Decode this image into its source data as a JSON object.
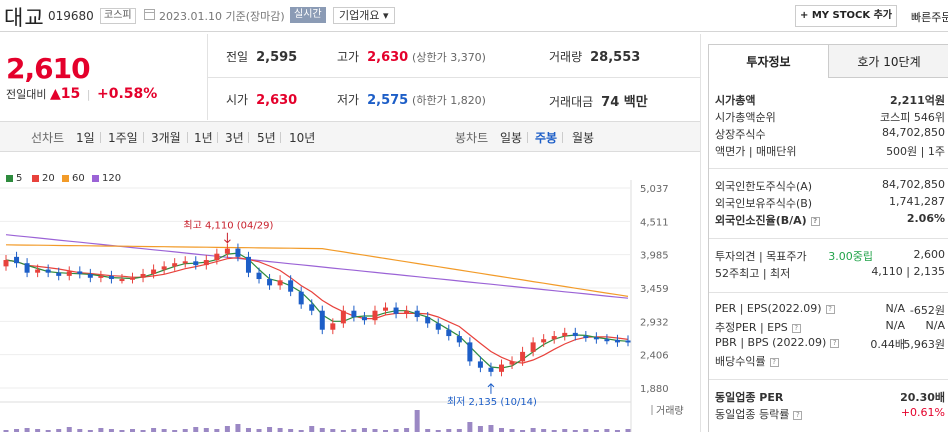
{
  "header": {
    "name": "대교",
    "code": "019680",
    "market": "코스피",
    "date": "2023.01.10 기준(장마감)",
    "realtime_label": "실시간",
    "overview_label": "기업개요 ▾",
    "mystock_label": "+ MY STOCK 추가",
    "quick_label": "빠른주문"
  },
  "quote": {
    "price": "2,610",
    "change_label": "전일대비",
    "change_arrow": "▲",
    "change_value": "15",
    "change_rate": "+0.58%",
    "prev_close_label": "전일",
    "prev_close": "2,595",
    "high_label": "고가",
    "high": "2,630",
    "upper_limit": "(상한가 3,370)",
    "volume_label": "거래량",
    "volume": "28,553",
    "open_label": "시가",
    "open": "2,630",
    "low_label": "저가",
    "low": "2,575",
    "lower_limit": "(하한가 1,820)",
    "amount_label": "거래대금",
    "amount": "74 백만"
  },
  "period_bar": {
    "line_label": "선차트",
    "line_periods": [
      "1일",
      "1주일",
      "3개월",
      "1년",
      "3년",
      "5년",
      "10년"
    ],
    "candle_label": "봉차트",
    "candle_periods": [
      "일봉",
      "주봉",
      "월봉"
    ],
    "candle_selected": "주봉"
  },
  "legend": [
    {
      "label": "5",
      "color": "#2e8b3e"
    },
    {
      "label": "20",
      "color": "#e8423c"
    },
    {
      "label": "60",
      "color": "#f29b29"
    },
    {
      "label": "120",
      "color": "#9b63d6"
    }
  ],
  "chart_data": {
    "type": "candlestick",
    "period": "주봉",
    "y_ticks": [
      "5,037",
      "4,511",
      "3,985",
      "3,459",
      "2,932",
      "2,406",
      "1,880"
    ],
    "ylim": [
      1880,
      5037
    ],
    "annotations": {
      "high": "최고 4,110 (04/29)",
      "low": "최저 2,135 (10/14)"
    },
    "volume_label": "거래량",
    "series": [
      {
        "name": "5",
        "color": "#2e8b3e"
      },
      {
        "name": "20",
        "color": "#e8423c"
      },
      {
        "name": "60",
        "color": "#f29b29"
      },
      {
        "name": "120",
        "color": "#9b63d6"
      }
    ]
  },
  "right_panel": {
    "tabs": [
      "투자정보",
      "호가 10단계"
    ],
    "rows": [
      {
        "k": "시가총액",
        "v": "2,211억원",
        "bold": true
      },
      {
        "k": "시가총액순위",
        "v": "코스피 546위"
      },
      {
        "k": "상장주식수",
        "v": "84,702,850"
      },
      {
        "k": "액면가 | 매매단위",
        "v": "500원 | 1주"
      },
      {
        "k": "외국인한도주식수(A)",
        "v": "84,702,850"
      },
      {
        "k": "외국인보유주식수(B)",
        "v": "1,741,287"
      },
      {
        "k": "외국인소진율(B/A)",
        "v": "2.06%",
        "bold": true
      },
      {
        "k": "투자의견 | 목표주가",
        "v1": "3.00중립",
        "v": "2,600"
      },
      {
        "k": "52주최고 | 최저",
        "v": "4,110 | 2,135"
      },
      {
        "k": "PER | EPS(2022.09)",
        "v1": "N/A",
        "v": "-652원"
      },
      {
        "k": "추정PER | EPS",
        "v1": "N/A",
        "v": "N/A"
      },
      {
        "k": "PBR | BPS (2022.09)",
        "v1": "0.44배",
        "v": "5,963원"
      },
      {
        "k": "배당수익률",
        "v": ""
      },
      {
        "k": "동일업종 PER",
        "v": "20.30배",
        "bold": true
      },
      {
        "k": "동일업종 등락률",
        "v": "+0.61%"
      }
    ]
  }
}
